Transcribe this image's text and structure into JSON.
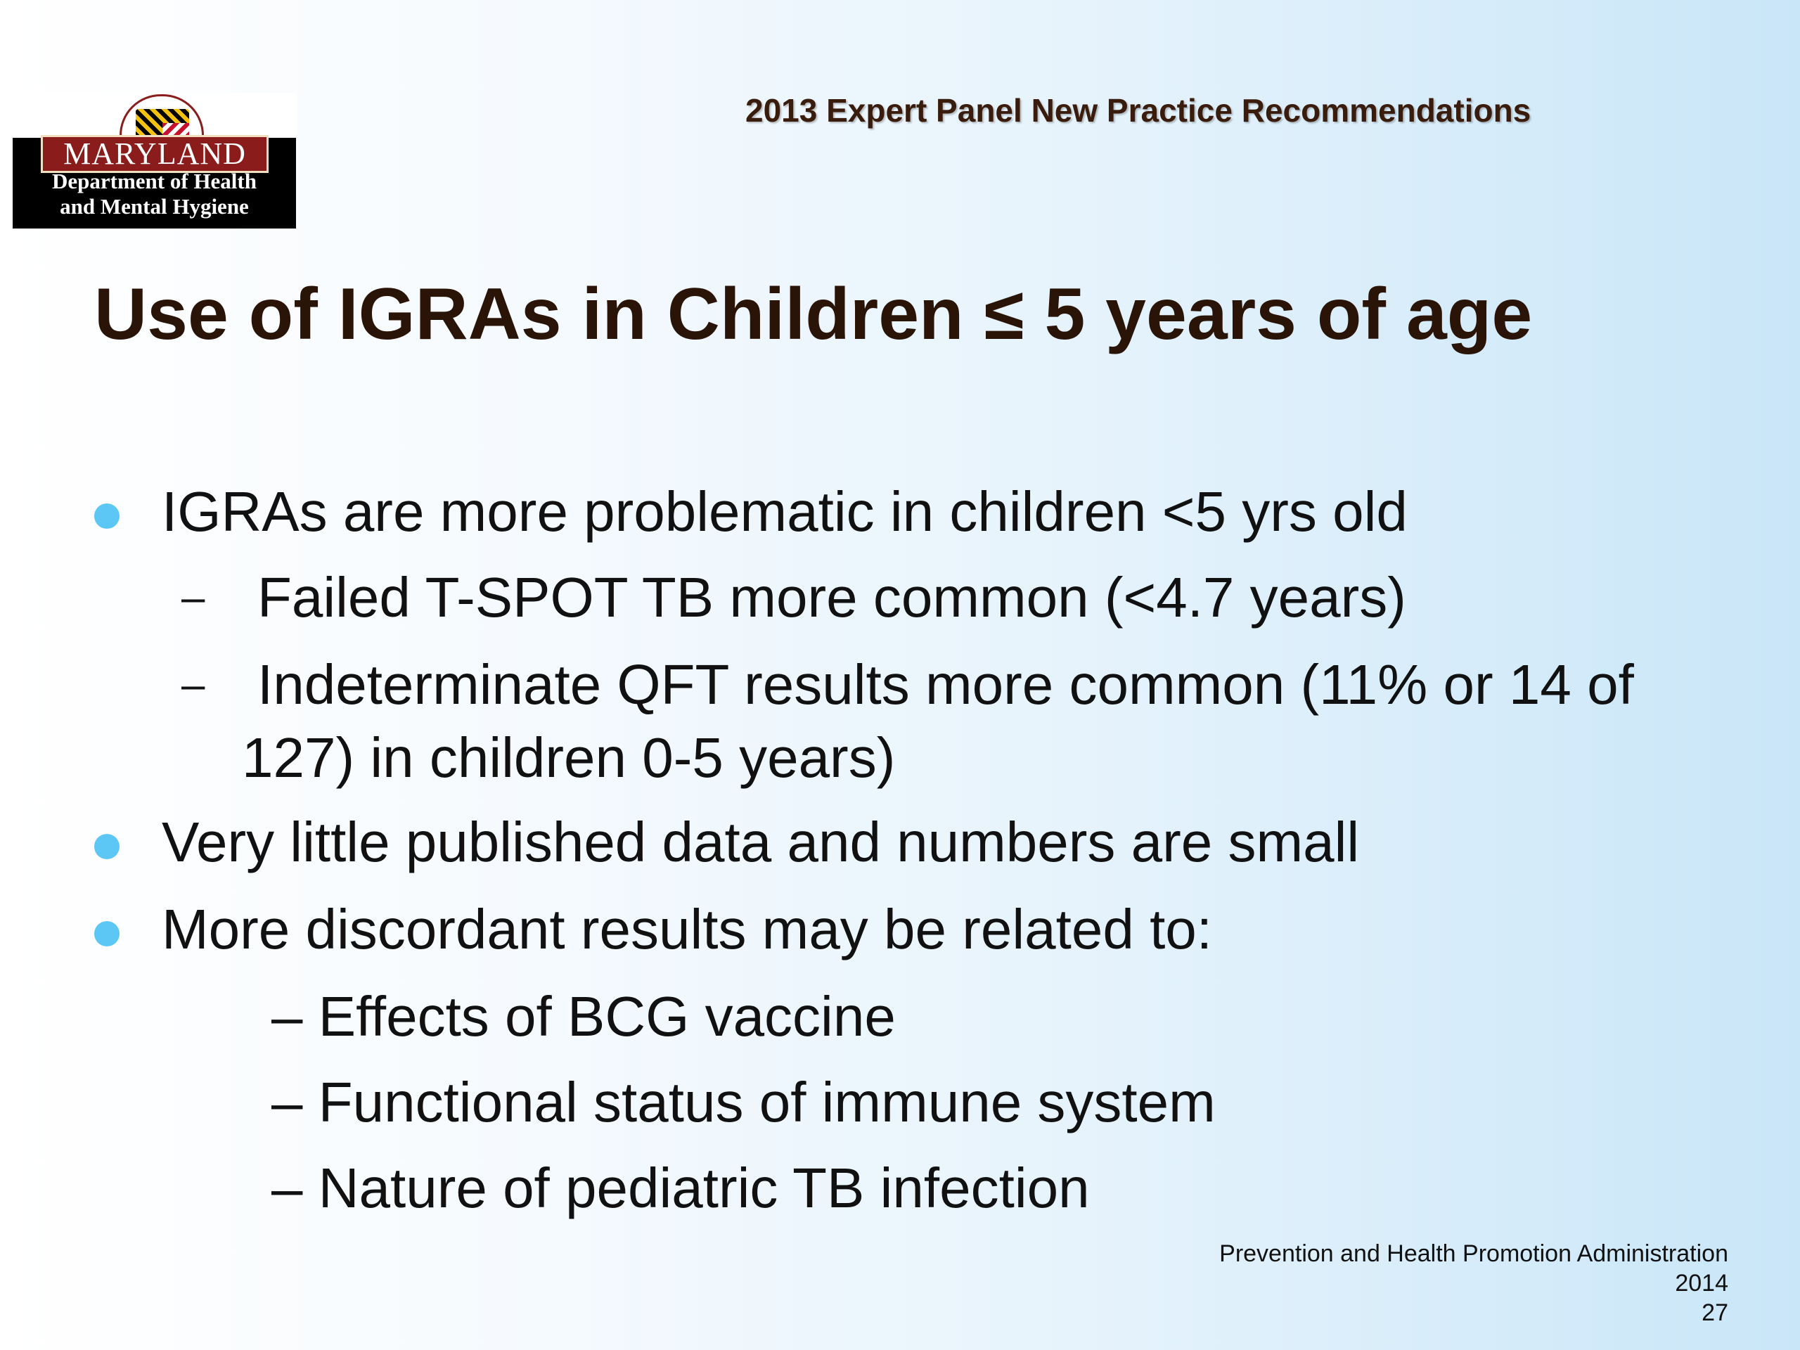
{
  "logo": {
    "name": "MARYLAND",
    "dept_line1": "Department of Health",
    "dept_line2": "and Mental Hygiene"
  },
  "header": {
    "subtitle": "2013 Expert Panel New Practice Recommendations",
    "title": "Use of IGRAs in Children ≤  5 years of age"
  },
  "bullets": [
    "IGRAs are more problematic in children <5 yrs old",
    "Very little published data and numbers are small",
    "More discordant results may be related to:"
  ],
  "sub_bullets_1": {
    "dash": "–",
    "item1": "Failed T-SPOT TB more common (<4.7 years)",
    "item2_line1": "Indeterminate QFT results more common (11% or 14 of",
    "item2_line2": "127) in children 0-5 years)"
  },
  "sub_bullets_3": [
    "– Effects of BCG vaccine",
    "– Functional status of immune system",
    "– Nature of pediatric TB infection"
  ],
  "footer": {
    "org": "Prevention and Health Promotion Administration",
    "year": "2014",
    "page": "27"
  },
  "colors": {
    "bullet": "#5cc7f5",
    "title": "#2a1408",
    "logo_red": "#8a1c1c"
  }
}
